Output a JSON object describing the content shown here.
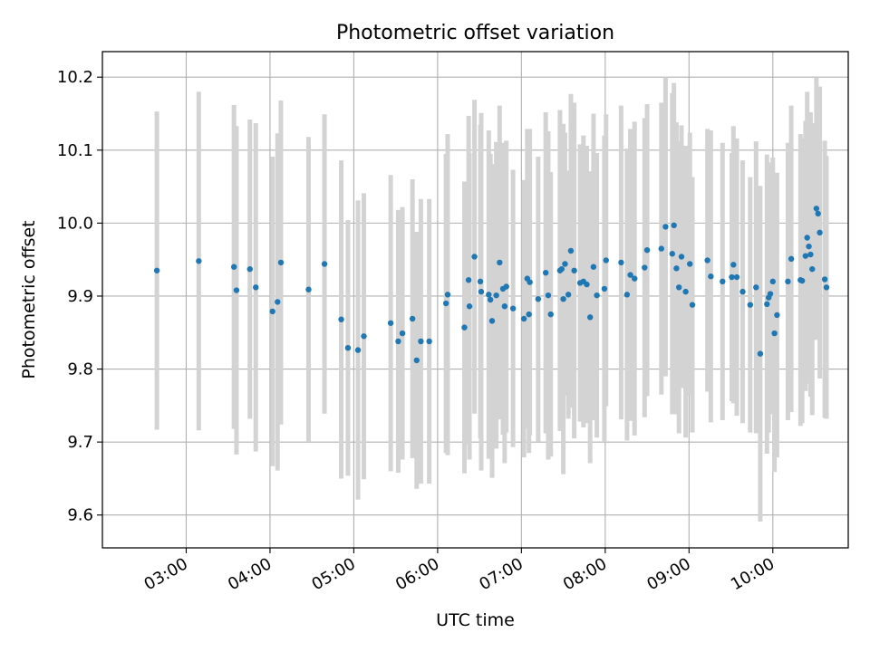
{
  "chart_data": {
    "type": "scatter",
    "title": "Photometric offset variation",
    "xlabel": "UTC time",
    "ylabel": "Photometric offset",
    "x_unit": "hours UTC",
    "xlim": [
      2.0,
      10.9
    ],
    "ylim": [
      9.555,
      10.235
    ],
    "x_ticks": [
      3,
      4,
      5,
      6,
      7,
      8,
      9,
      10
    ],
    "x_tick_labels": [
      "03:00",
      "04:00",
      "05:00",
      "06:00",
      "07:00",
      "08:00",
      "09:00",
      "10:00"
    ],
    "y_ticks": [
      9.6,
      9.7,
      9.8,
      9.9,
      10.0,
      10.1,
      10.2
    ],
    "y_tick_labels": [
      "9.6",
      "9.7",
      "9.8",
      "9.9",
      "10.0",
      "10.1",
      "10.2"
    ],
    "grid": true,
    "point_color": "#1f77b4",
    "errorbar_color": "#d3d3d3",
    "points": [
      [
        2.65,
        9.935,
        0.218
      ],
      [
        3.15,
        9.948,
        0.232
      ],
      [
        3.57,
        9.94,
        0.222
      ],
      [
        3.6,
        9.908,
        0.225
      ],
      [
        3.76,
        9.937,
        0.205
      ],
      [
        3.83,
        9.912,
        0.225
      ],
      [
        4.03,
        9.879,
        0.212
      ],
      [
        4.09,
        9.892,
        0.231
      ],
      [
        4.13,
        9.946,
        0.222
      ],
      [
        4.46,
        9.909,
        0.209
      ],
      [
        4.65,
        9.944,
        0.205
      ],
      [
        4.85,
        9.868,
        0.218
      ],
      [
        4.93,
        9.829,
        0.175
      ],
      [
        5.05,
        9.826,
        0.205
      ],
      [
        5.12,
        9.845,
        0.196
      ],
      [
        5.44,
        9.863,
        0.203
      ],
      [
        5.53,
        9.838,
        0.18
      ],
      [
        5.58,
        9.849,
        0.173
      ],
      [
        5.7,
        9.869,
        0.191
      ],
      [
        5.75,
        9.812,
        0.176
      ],
      [
        5.8,
        9.838,
        0.195
      ],
      [
        5.9,
        9.838,
        0.195
      ],
      [
        6.1,
        9.89,
        0.205
      ],
      [
        6.12,
        9.902,
        0.22
      ],
      [
        6.32,
        9.857,
        0.2
      ],
      [
        6.37,
        9.922,
        0.225
      ],
      [
        6.38,
        9.886,
        0.21
      ],
      [
        6.44,
        9.954,
        0.215
      ],
      [
        6.51,
        9.92,
        0.215
      ],
      [
        6.52,
        9.906,
        0.245
      ],
      [
        6.61,
        9.902,
        0.225
      ],
      [
        6.63,
        9.895,
        0.2
      ],
      [
        6.65,
        9.866,
        0.215
      ],
      [
        6.7,
        9.901,
        0.21
      ],
      [
        6.74,
        9.946,
        0.215
      ],
      [
        6.78,
        9.91,
        0.2
      ],
      [
        6.8,
        9.886,
        0.215
      ],
      [
        6.82,
        9.913,
        0.2
      ],
      [
        6.9,
        9.883,
        0.19
      ],
      [
        7.03,
        9.869,
        0.19
      ],
      [
        7.07,
        9.924,
        0.205
      ],
      [
        7.1,
        9.919,
        0.21
      ],
      [
        7.09,
        9.875,
        0.19
      ],
      [
        7.2,
        9.896,
        0.195
      ],
      [
        7.29,
        9.932,
        0.22
      ],
      [
        7.32,
        9.901,
        0.225
      ],
      [
        7.35,
        9.875,
        0.195
      ],
      [
        7.46,
        9.935,
        0.22
      ],
      [
        7.48,
        9.937,
        0.165
      ],
      [
        7.5,
        9.896,
        0.24
      ],
      [
        7.52,
        9.944,
        0.18
      ],
      [
        7.56,
        9.902,
        0.17
      ],
      [
        7.59,
        9.962,
        0.215
      ],
      [
        7.63,
        9.935,
        0.23
      ],
      [
        7.7,
        9.918,
        0.19
      ],
      [
        7.74,
        9.92,
        0.2
      ],
      [
        7.78,
        9.916,
        0.19
      ],
      [
        7.82,
        9.871,
        0.2
      ],
      [
        7.86,
        9.94,
        0.21
      ],
      [
        7.9,
        9.901,
        0.195
      ],
      [
        7.99,
        9.91,
        0.21
      ],
      [
        8.01,
        9.949,
        0.2
      ],
      [
        8.19,
        9.946,
        0.215
      ],
      [
        8.26,
        9.902,
        0.2
      ],
      [
        8.3,
        9.929,
        0.2
      ],
      [
        8.35,
        9.924,
        0.215
      ],
      [
        8.47,
        9.939,
        0.205
      ],
      [
        8.5,
        9.963,
        0.2
      ],
      [
        8.67,
        9.965,
        0.2
      ],
      [
        8.72,
        9.995,
        0.205
      ],
      [
        8.8,
        9.958,
        0.22
      ],
      [
        8.82,
        9.997,
        0.195
      ],
      [
        8.85,
        9.938,
        0.2
      ],
      [
        8.88,
        9.912,
        0.2
      ],
      [
        8.91,
        9.954,
        0.18
      ],
      [
        8.96,
        9.906,
        0.2
      ],
      [
        9.01,
        9.944,
        0.18
      ],
      [
        9.04,
        9.888,
        0.175
      ],
      [
        9.22,
        9.949,
        0.18
      ],
      [
        9.26,
        9.927,
        0.2
      ],
      [
        9.4,
        9.92,
        0.19
      ],
      [
        9.51,
        9.926,
        0.17
      ],
      [
        9.53,
        9.943,
        0.19
      ],
      [
        9.57,
        9.926,
        0.19
      ],
      [
        9.64,
        9.906,
        0.18
      ],
      [
        9.73,
        9.888,
        0.175
      ],
      [
        9.8,
        9.912,
        0.2
      ],
      [
        9.85,
        9.821,
        0.23
      ],
      [
        9.93,
        9.889,
        0.205
      ],
      [
        9.95,
        9.898,
        0.185
      ],
      [
        9.97,
        9.903,
        0.165
      ],
      [
        10.0,
        9.92,
        0.17
      ],
      [
        10.02,
        9.849,
        0.19
      ],
      [
        10.05,
        9.874,
        0.195
      ],
      [
        10.18,
        9.92,
        0.19
      ],
      [
        10.22,
        9.951,
        0.21
      ],
      [
        10.33,
        9.922,
        0.2
      ],
      [
        10.35,
        9.921,
        0.195
      ],
      [
        10.39,
        9.955,
        0.185
      ],
      [
        10.41,
        9.98,
        0.2
      ],
      [
        10.43,
        9.968,
        0.17
      ],
      [
        10.45,
        9.957,
        0.195
      ],
      [
        10.47,
        9.937,
        0.2
      ],
      [
        10.52,
        10.02,
        0.18
      ],
      [
        10.54,
        10.013,
        0.165
      ],
      [
        10.56,
        9.987,
        0.2
      ],
      [
        10.62,
        9.923,
        0.19
      ],
      [
        10.64,
        9.912,
        0.18
      ]
    ]
  }
}
